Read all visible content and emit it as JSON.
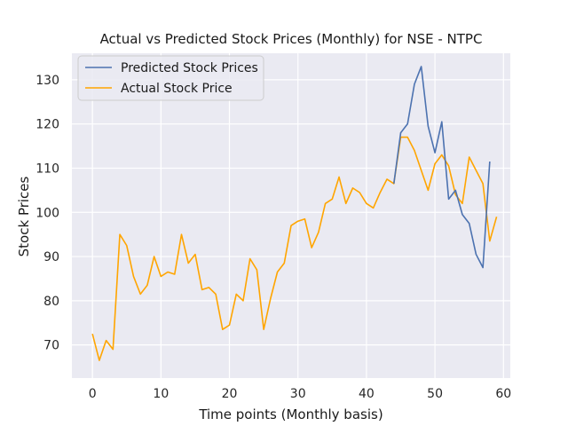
{
  "chart_data": {
    "type": "line",
    "title": "Actual vs Predicted Stock Prices (Monthly) for NSE - NTPC",
    "xlabel": "Time points (Monthly basis)",
    "ylabel": "Stock Prices",
    "xlim": [
      -3,
      61
    ],
    "ylim": [
      62.5,
      136
    ],
    "xticks": [
      0,
      10,
      20,
      30,
      40,
      50,
      60
    ],
    "xtick_labels": [
      "0",
      "10",
      "20",
      "30",
      "40",
      "50",
      "60"
    ],
    "yticks": [
      70,
      80,
      90,
      100,
      110,
      120,
      130
    ],
    "ytick_labels": [
      "70",
      "80",
      "90",
      "100",
      "110",
      "120",
      "130"
    ],
    "grid": true,
    "legend_position": "top-left",
    "plot_background": "#eaeaf2",
    "series": [
      {
        "name": "Predicted Stock Prices",
        "color": "#4c72b0",
        "x": [
          44,
          45,
          46,
          47,
          48,
          49,
          50,
          51,
          52,
          53,
          54,
          55,
          56,
          57,
          58
        ],
        "values": [
          106.5,
          118,
          120,
          129,
          133,
          119.5,
          113.5,
          120.5,
          103,
          105,
          99.5,
          97.5,
          90.5,
          87.5,
          111.5
        ]
      },
      {
        "name": "Actual Stock Price",
        "color": "#ffa500",
        "x": [
          0,
          1,
          2,
          3,
          4,
          5,
          6,
          7,
          8,
          9,
          10,
          11,
          12,
          13,
          14,
          15,
          16,
          17,
          18,
          19,
          20,
          21,
          22,
          23,
          24,
          25,
          26,
          27,
          28,
          29,
          30,
          31,
          32,
          33,
          34,
          35,
          36,
          37,
          38,
          39,
          40,
          41,
          42,
          43,
          44,
          45,
          46,
          47,
          48,
          49,
          50,
          51,
          52,
          53,
          54,
          55,
          56,
          57,
          58,
          59
        ],
        "values": [
          72.5,
          66.5,
          71,
          69,
          95,
          92.5,
          85.5,
          81.5,
          83.5,
          90,
          85.5,
          86.5,
          86,
          95,
          88.5,
          90.5,
          82.5,
          83,
          81.5,
          73.5,
          74.5,
          81.5,
          80,
          89.5,
          87,
          73.5,
          80.5,
          86.5,
          88.5,
          97,
          98,
          98.5,
          92,
          95.5,
          102,
          103,
          108,
          102,
          105.5,
          104.5,
          102,
          101,
          104.5,
          107.5,
          106.5,
          117,
          117,
          114,
          109.5,
          105,
          111,
          113,
          110.5,
          104,
          102,
          112.5,
          109.5,
          106.5,
          93.5,
          99
        ]
      }
    ]
  }
}
